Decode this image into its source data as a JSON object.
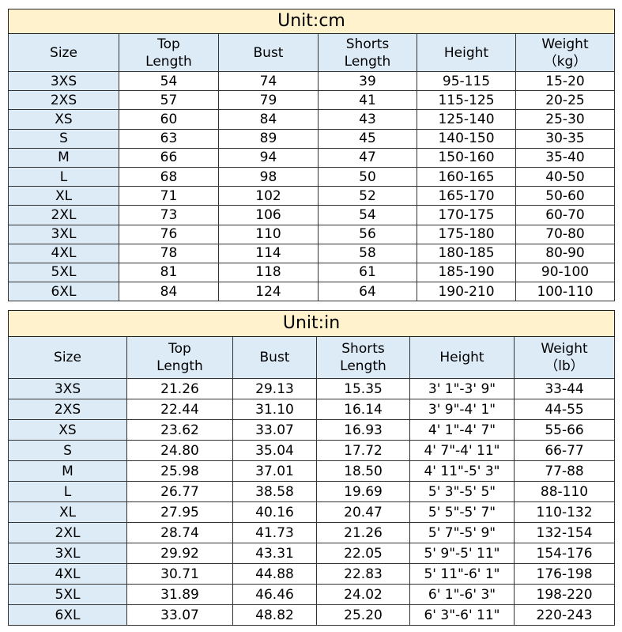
{
  "colors": {
    "title_bg": "#FFF2CC",
    "header_bg": "#DDEBF7",
    "border": "#333333"
  },
  "cm_table": {
    "title": "Unit:cm",
    "headers": [
      [
        "Size"
      ],
      [
        "Top",
        "Length"
      ],
      [
        "Bust"
      ],
      [
        "Shorts",
        "Length"
      ],
      [
        "Height"
      ],
      [
        "Weight",
        "（kg）"
      ]
    ],
    "rows": [
      [
        "3XS",
        "54",
        "74",
        "39",
        "95-115",
        "15-20"
      ],
      [
        "2XS",
        "57",
        "79",
        "41",
        "115-125",
        "20-25"
      ],
      [
        "XS",
        "60",
        "84",
        "43",
        "125-140",
        "25-30"
      ],
      [
        "S",
        "63",
        "89",
        "45",
        "140-150",
        "30-35"
      ],
      [
        "M",
        "66",
        "94",
        "47",
        "150-160",
        "35-40"
      ],
      [
        "L",
        "68",
        "98",
        "50",
        "160-165",
        "40-50"
      ],
      [
        "XL",
        "71",
        "102",
        "52",
        "165-170",
        "50-60"
      ],
      [
        "2XL",
        "73",
        "106",
        "54",
        "170-175",
        "60-70"
      ],
      [
        "3XL",
        "76",
        "110",
        "56",
        "175-180",
        "70-80"
      ],
      [
        "4XL",
        "78",
        "114",
        "58",
        "180-185",
        "80-90"
      ],
      [
        "5XL",
        "81",
        "118",
        "61",
        "185-190",
        "90-100"
      ],
      [
        "6XL",
        "84",
        "124",
        "64",
        "190-210",
        "100-110"
      ]
    ]
  },
  "in_table": {
    "title": "Unit:in",
    "headers": [
      [
        "Size"
      ],
      [
        "Top",
        "Length"
      ],
      [
        "Bust"
      ],
      [
        "Shorts",
        "Length"
      ],
      [
        "Height"
      ],
      [
        "Weight",
        "（lb）"
      ]
    ],
    "rows": [
      [
        "3XS",
        "21.26",
        "29.13",
        "15.35",
        "3' 1\"-3' 9\"",
        "33-44"
      ],
      [
        "2XS",
        "22.44",
        "31.10",
        "16.14",
        "3' 9\"-4' 1\"",
        "44-55"
      ],
      [
        "XS",
        "23.62",
        "33.07",
        "16.93",
        "4' 1\"-4' 7\"",
        "55-66"
      ],
      [
        "S",
        "24.80",
        "35.04",
        "17.72",
        "4' 7\"-4' 11\"",
        "66-77"
      ],
      [
        "M",
        "25.98",
        "37.01",
        "18.50",
        "4' 11\"-5' 3\"",
        "77-88"
      ],
      [
        "L",
        "26.77",
        "38.58",
        "19.69",
        "5' 3\"-5' 5\"",
        "88-110"
      ],
      [
        "XL",
        "27.95",
        "40.16",
        "20.47",
        "5' 5\"-5' 7\"",
        "110-132"
      ],
      [
        "2XL",
        "28.74",
        "41.73",
        "21.26",
        "5' 7\"-5' 9\"",
        "132-154"
      ],
      [
        "3XL",
        "29.92",
        "43.31",
        "22.05",
        "5' 9\"-5' 11\"",
        "154-176"
      ],
      [
        "4XL",
        "30.71",
        "44.88",
        "22.83",
        "5' 11\"-6' 1\"",
        "176-198"
      ],
      [
        "5XL",
        "31.89",
        "46.46",
        "24.02",
        "6' 1\"-6' 3\"",
        "198-220"
      ],
      [
        "6XL",
        "33.07",
        "48.82",
        "25.20",
        "6' 3\"-6' 11\"",
        "220-243"
      ]
    ]
  }
}
